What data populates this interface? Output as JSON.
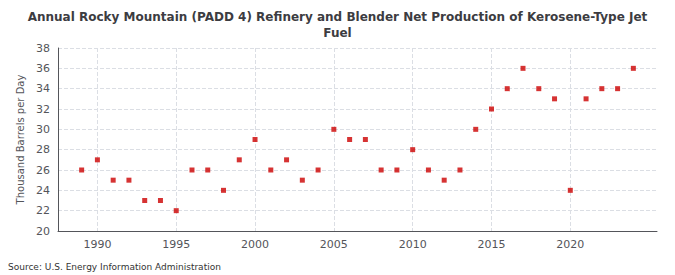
{
  "chart_data": {
    "type": "scatter",
    "title": "Annual Rocky Mountain (PADD 4) Refinery and Blender Net Production of Kerosene-Type Jet\nFuel",
    "ylabel": "Thousand Barrels per Day",
    "source": "Source: U.S. Energy Information Administration",
    "color": "#cc0000",
    "marker": "square",
    "x": [
      1989,
      1990,
      1991,
      1992,
      1993,
      1994,
      1995,
      1996,
      1997,
      1998,
      1999,
      2000,
      2001,
      2002,
      2003,
      2004,
      2005,
      2006,
      2007,
      2008,
      2009,
      2010,
      2011,
      2012,
      2013,
      2014,
      2015,
      2016,
      2017,
      2018,
      2019,
      2020,
      2021,
      2022,
      2023,
      2024
    ],
    "values": [
      26,
      27,
      25,
      25,
      23,
      23,
      22,
      26,
      26,
      24,
      27,
      29,
      26,
      27,
      25,
      26,
      30,
      29,
      29,
      26,
      26,
      28,
      26,
      25,
      26,
      30,
      32,
      34,
      36,
      34,
      33,
      24,
      33,
      34,
      34,
      36
    ],
    "xlim": [
      1987.5,
      2025.5
    ],
    "xticks": [
      1990,
      1995,
      2000,
      2005,
      2010,
      2015,
      2020
    ],
    "ylim": [
      20,
      38
    ],
    "yticks": [
      20,
      22,
      24,
      26,
      28,
      30,
      32,
      34,
      36,
      38
    ],
    "grid": true
  }
}
